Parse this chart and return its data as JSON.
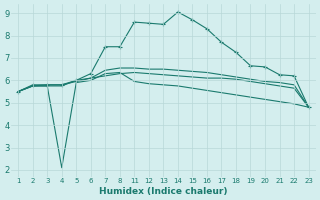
{
  "xlabel": "Humidex (Indice chaleur)",
  "bg_color": "#d4eeee",
  "line_color": "#1a7a6e",
  "grid_color": "#b8d8d8",
  "xtick_labels": [
    "1",
    "2",
    "3",
    "4",
    "5",
    "6",
    "7",
    "8",
    "11",
    "12",
    "13",
    "14",
    "15",
    "16",
    "17",
    "18",
    "19",
    "20",
    "21",
    "22",
    "23"
  ],
  "yticks": [
    2,
    3,
    4,
    5,
    6,
    7,
    8,
    9
  ],
  "ylim": [
    1.7,
    9.4
  ],
  "lines": [
    {
      "y": [
        5.5,
        5.8,
        5.8,
        5.8,
        6.0,
        6.3,
        7.5,
        7.5,
        8.6,
        8.55,
        8.5,
        9.05,
        8.7,
        8.3,
        7.7,
        7.25,
        6.65,
        6.6,
        6.25,
        6.2,
        4.8
      ],
      "marker": "+"
    },
    {
      "y": [
        5.5,
        5.75,
        5.75,
        2.1,
        5.9,
        6.0,
        6.3,
        6.35,
        5.95,
        5.85,
        5.8,
        5.75,
        5.65,
        5.55,
        5.45,
        5.35,
        5.25,
        5.15,
        5.05,
        4.95,
        4.8
      ],
      "marker": null
    },
    {
      "y": [
        5.5,
        5.75,
        5.75,
        5.75,
        6.0,
        6.1,
        6.2,
        6.3,
        6.35,
        6.3,
        6.25,
        6.2,
        6.15,
        6.1,
        6.1,
        6.05,
        5.95,
        5.85,
        5.75,
        5.65,
        4.8
      ],
      "marker": null
    },
    {
      "y": [
        5.5,
        5.75,
        5.8,
        5.8,
        5.95,
        6.1,
        6.45,
        6.55,
        6.55,
        6.5,
        6.5,
        6.45,
        6.4,
        6.35,
        6.25,
        6.15,
        6.05,
        5.95,
        5.9,
        5.8,
        4.8
      ],
      "marker": null
    }
  ]
}
